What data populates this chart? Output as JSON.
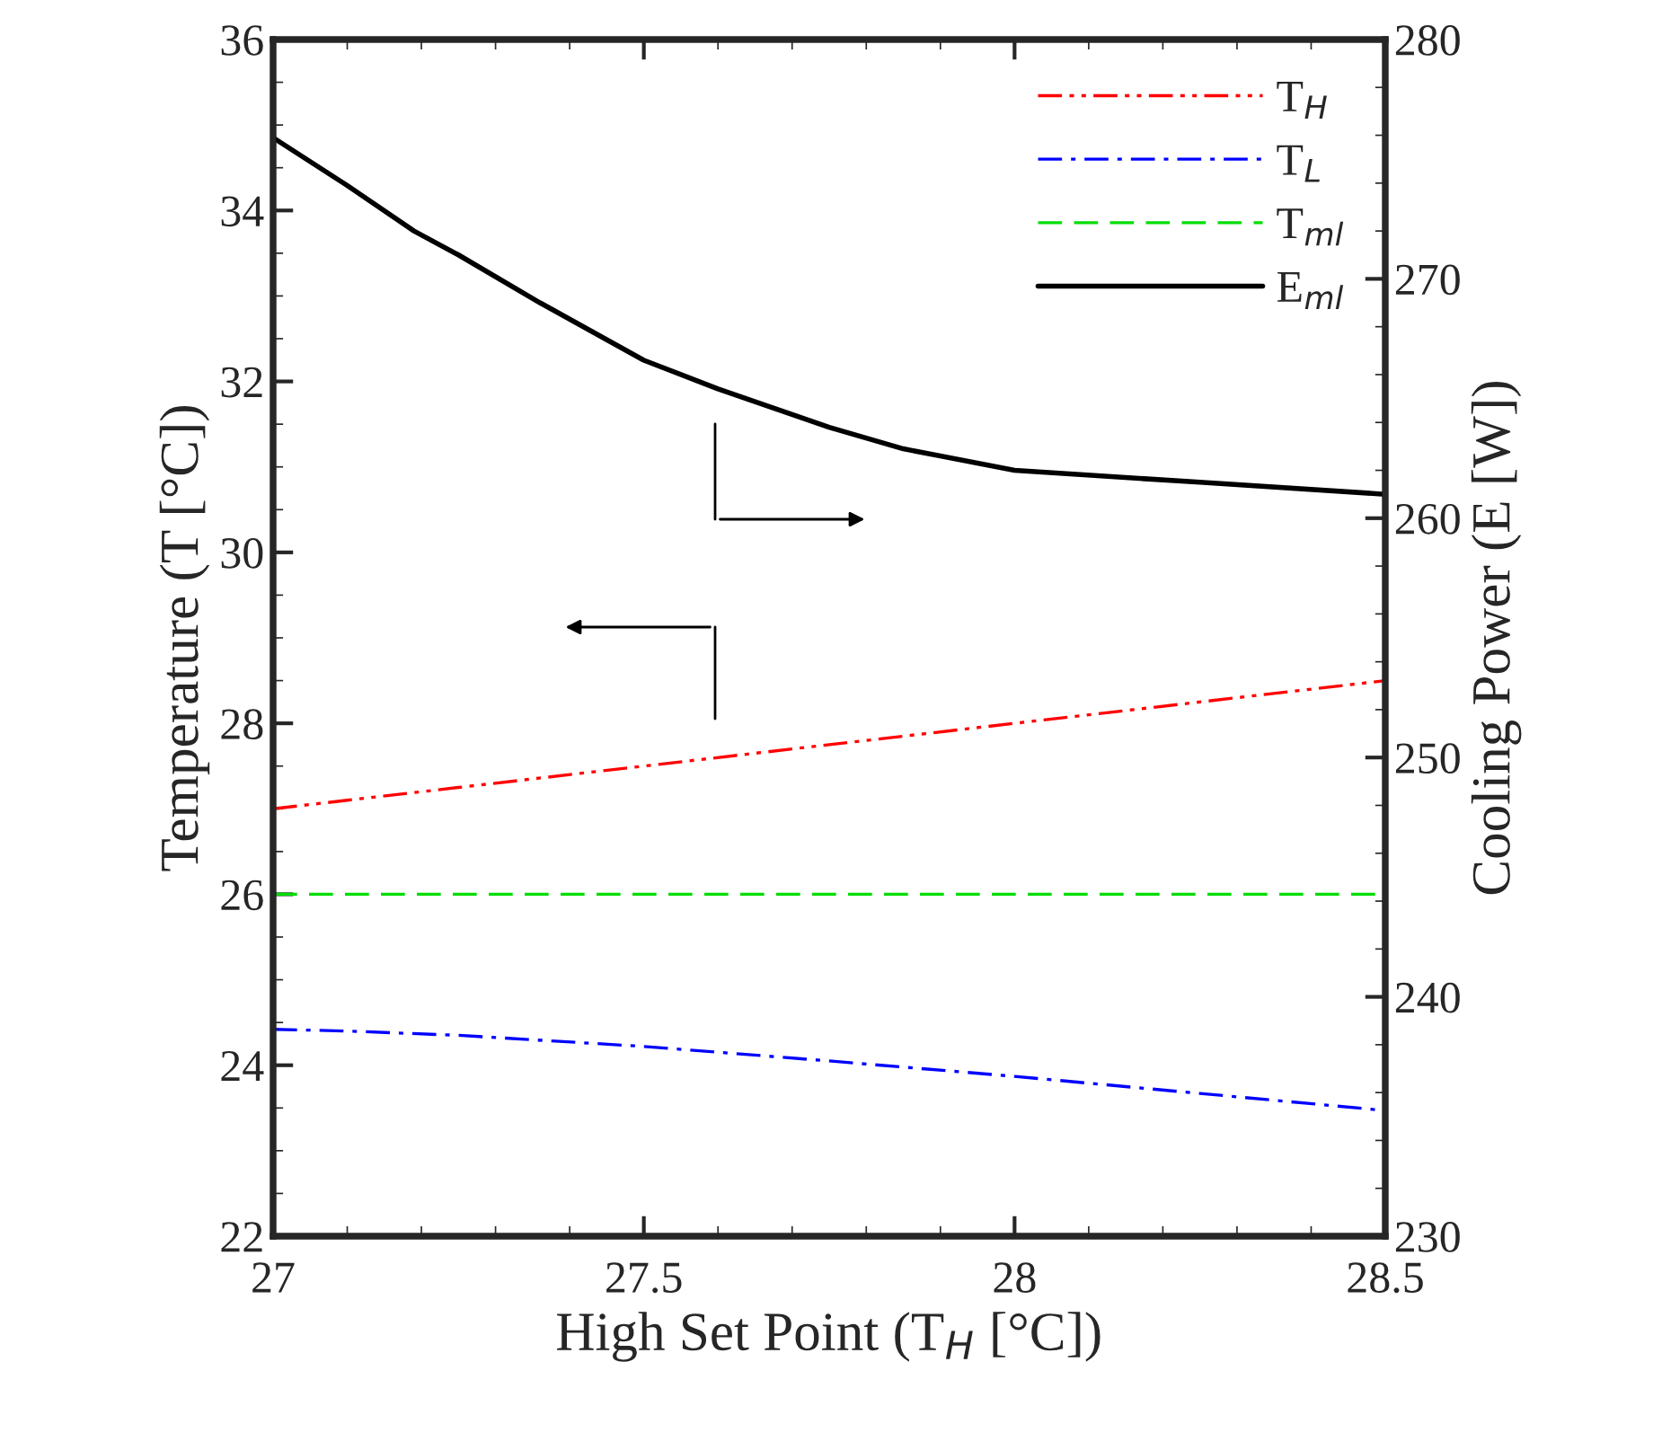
{
  "chart_data": {
    "type": "line",
    "xlabel": "High Set Point (T$_{H}$ [°C])",
    "ylabel": "Temperature (T [°C])",
    "y2label": "Cooling Power (E [W])",
    "x": [
      27,
      27.05,
      27.1,
      27.25,
      27.5,
      27.75,
      28,
      28.25,
      28.5
    ],
    "series": [
      {
        "name": "T$_{H}$",
        "color": "#ff0000",
        "line_style": "dashdotdot",
        "values": [
          27,
          27.05,
          27.1,
          27.25,
          27.5,
          27.75,
          28,
          28.25,
          28.5
        ]
      },
      {
        "name": "T$_{L}$",
        "color": "#0000ff",
        "line_style": "dashdot",
        "values": [
          24.42,
          24.41,
          24.4,
          24.35,
          24.22,
          24.05,
          23.87,
          23.67,
          23.47
        ]
      },
      {
        "name": "T$_{ml}$",
        "color": "#00dd00",
        "line_style": "dashed",
        "values": [
          26,
          26,
          26,
          26,
          26,
          26,
          26,
          26,
          26
        ]
      },
      {
        "name": "E$_{ml}$",
        "color": "#000000",
        "line_style": "solid",
        "axis": "y2",
        "x": [
          27,
          27.1,
          27.19,
          27.25,
          27.36,
          27.5,
          27.6,
          27.75,
          27.85,
          28,
          28.25,
          28.5
        ],
        "values": [
          275.9,
          273.9,
          272.0,
          271.0,
          269.0,
          266.6,
          265.4,
          263.8,
          262.9,
          262.0,
          261.5,
          261.0
        ]
      }
    ],
    "xlim": [
      27,
      28.5
    ],
    "xticks": [
      27,
      27.5,
      28,
      28.5
    ],
    "ylim": [
      22,
      36
    ],
    "yticks": [
      22,
      24,
      26,
      28,
      30,
      32,
      34,
      36
    ],
    "y2lim": [
      230,
      280
    ],
    "y2ticks": [
      230,
      240,
      250,
      260,
      270,
      280
    ],
    "grid": false,
    "legend": "top right",
    "marker": "none"
  }
}
